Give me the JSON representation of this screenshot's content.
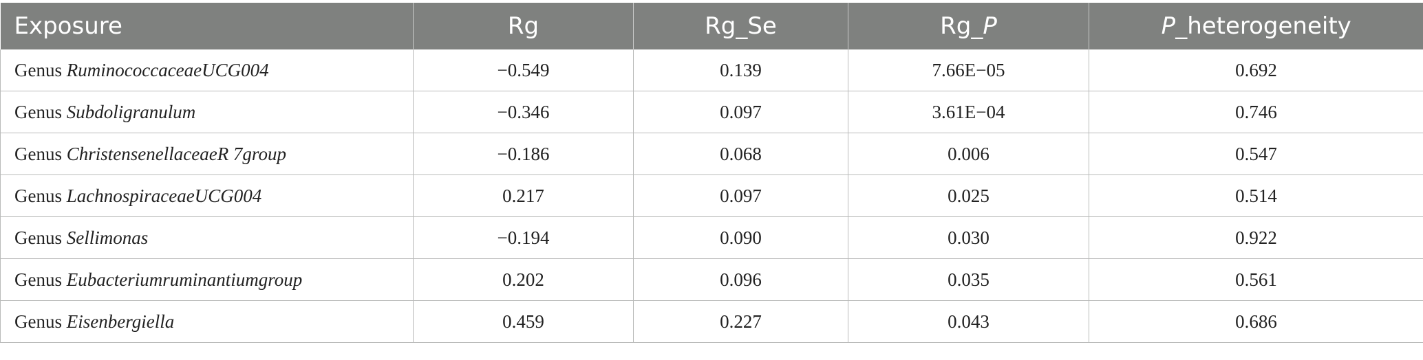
{
  "table": {
    "headers": {
      "exposure": "Exposure",
      "rg": "Rg",
      "rg_se": "Rg_Se",
      "rg_p_prefix": "Rg_",
      "rg_p_italic": "P",
      "p_het_italic": "P",
      "p_het_suffix": "_heterogeneity"
    },
    "rows": [
      {
        "prefix": "Genus ",
        "genus": "RuminococcaceaeUCG004",
        "rg": "−0.549",
        "rg_se": "0.139",
        "rg_p": "7.66E−05",
        "p_het": "0.692"
      },
      {
        "prefix": "Genus ",
        "genus": "Subdoligranulum",
        "rg": "−0.346",
        "rg_se": "0.097",
        "rg_p": "3.61E−04",
        "p_het": "0.746"
      },
      {
        "prefix": "Genus ",
        "genus": "ChristensenellaceaeR 7group",
        "rg": "−0.186",
        "rg_se": "0.068",
        "rg_p": "0.006",
        "p_het": "0.547"
      },
      {
        "prefix": "Genus ",
        "genus": "LachnospiraceaeUCG004",
        "rg": "0.217",
        "rg_se": "0.097",
        "rg_p": "0.025",
        "p_het": "0.514"
      },
      {
        "prefix": "Genus ",
        "genus": "Sellimonas",
        "rg": "−0.194",
        "rg_se": "0.090",
        "rg_p": "0.030",
        "p_het": "0.922"
      },
      {
        "prefix": "Genus ",
        "genus": "Eubacteriumruminantiumgroup",
        "rg": "0.202",
        "rg_se": "0.096",
        "rg_p": "0.035",
        "p_het": "0.561"
      },
      {
        "prefix": "Genus ",
        "genus": "Eisenbergiella",
        "rg": "0.459",
        "rg_se": "0.227",
        "rg_p": "0.043",
        "p_het": "0.686"
      }
    ]
  }
}
